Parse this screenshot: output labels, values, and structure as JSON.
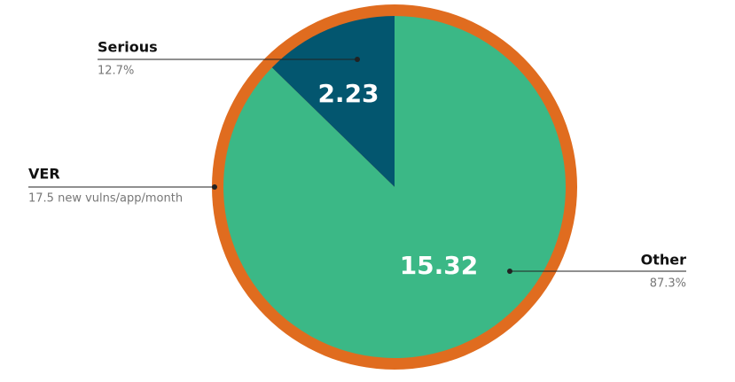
{
  "chart_data": {
    "type": "pie",
    "ring": {
      "name": "VER",
      "label": "17.5 new vulns/app/month",
      "color": "#e06c1f"
    },
    "categories": [
      "Serious",
      "Other"
    ],
    "values": [
      2.23,
      15.32
    ],
    "percent_labels": [
      "12.7%",
      "87.3%"
    ],
    "colors": [
      "#03566f",
      "#3bb886"
    ]
  }
}
